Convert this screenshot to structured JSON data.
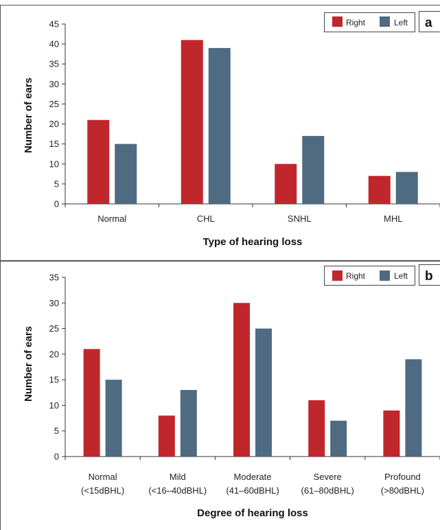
{
  "colors": {
    "right": "#c0272d",
    "left": "#4e6b82"
  },
  "legend": {
    "right": "Right",
    "left": "Left"
  },
  "chart_data": [
    {
      "panel": "a",
      "type": "bar",
      "categories": [
        [
          "Normal"
        ],
        [
          "CHL"
        ],
        [
          "SNHL"
        ],
        [
          "MHL"
        ]
      ],
      "series": [
        {
          "name": "Right",
          "values": [
            21,
            41,
            10,
            7
          ]
        },
        {
          "name": "Left",
          "values": [
            15,
            39,
            17,
            8
          ]
        }
      ],
      "xlabel": "Type of hearing loss",
      "ylabel": "Number of ears",
      "ylim": [
        0,
        45
      ],
      "yticks": [
        0,
        5,
        10,
        15,
        20,
        25,
        30,
        35,
        40,
        45
      ],
      "legend_position": "top-right",
      "grid": false
    },
    {
      "panel": "b",
      "type": "bar",
      "categories": [
        [
          "Normal",
          "(<15dBHL)"
        ],
        [
          "Mild",
          "(<16–40dBHL)"
        ],
        [
          "Moderate",
          "(41–60dBHL)"
        ],
        [
          "Severe",
          "(61–80dBHL)"
        ],
        [
          "Profound",
          "(>80dBHL)"
        ]
      ],
      "series": [
        {
          "name": "Right",
          "values": [
            21,
            8,
            30,
            11,
            9
          ]
        },
        {
          "name": "Left",
          "values": [
            15,
            13,
            25,
            7,
            19
          ]
        }
      ],
      "xlabel": "Degree of hearing loss",
      "ylabel": "Number of ears",
      "ylim": [
        0,
        35
      ],
      "yticks": [
        0,
        5,
        10,
        15,
        20,
        25,
        30,
        35
      ],
      "legend_position": "top-right",
      "grid": false
    }
  ]
}
